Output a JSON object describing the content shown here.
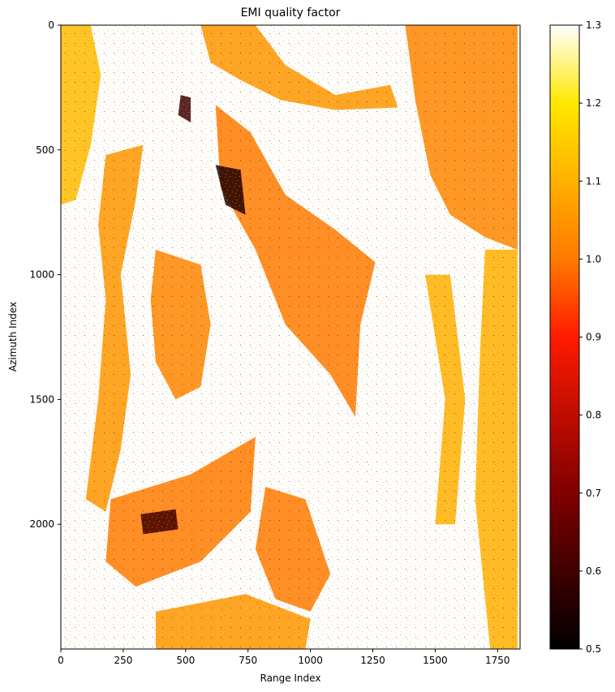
{
  "chart_data": {
    "type": "heatmap",
    "title": "EMI quality factor",
    "xlabel": "Range Index",
    "ylabel": "Azimuth Index",
    "xlim": [
      0,
      1840
    ],
    "ylim": [
      2500,
      0
    ],
    "x_ticks": [
      0,
      250,
      500,
      750,
      1000,
      1250,
      1500,
      1750
    ],
    "y_ticks": [
      0,
      500,
      1000,
      1500,
      2000
    ],
    "x_tick_labels": [
      "0",
      "250",
      "500",
      "750",
      "1000",
      "1250",
      "1500",
      "1750"
    ],
    "y_tick_labels": [
      "0",
      "500",
      "1000",
      "1500",
      "2000"
    ],
    "colormap": "afmhot",
    "colorbar": {
      "range": [
        0.5,
        1.3
      ],
      "ticks": [
        0.5,
        0.6,
        0.7,
        0.8,
        0.9,
        1.0,
        1.1,
        1.2,
        1.3
      ],
      "tick_labels": [
        "0.5",
        "0.6",
        "0.7",
        "0.8",
        "0.9",
        "1.0",
        "1.1",
        "1.2",
        "1.3"
      ]
    },
    "colors": {
      "background": "#ffffff",
      "orange": "#ff7a0a",
      "amber": "#ffa800",
      "yellow": "#ffc400",
      "dark": "#1a0000"
    },
    "regions": [
      {
        "name": "left-strip",
        "value": 1.12,
        "polygon": [
          [
            0,
            0
          ],
          [
            120,
            0
          ],
          [
            160,
            200
          ],
          [
            120,
            480
          ],
          [
            60,
            700
          ],
          [
            0,
            720
          ]
        ]
      },
      {
        "name": "left-diag-strip",
        "value": 1.05,
        "polygon": [
          [
            180,
            520
          ],
          [
            330,
            480
          ],
          [
            300,
            700
          ],
          [
            240,
            1000
          ],
          [
            280,
            1400
          ],
          [
            240,
            1700
          ],
          [
            180,
            1950
          ],
          [
            100,
            1900
          ],
          [
            150,
            1500
          ],
          [
            180,
            1100
          ],
          [
            150,
            800
          ]
        ]
      },
      {
        "name": "center-left-block",
        "value": 1.02,
        "polygon": [
          [
            380,
            900
          ],
          [
            560,
            960
          ],
          [
            600,
            1200
          ],
          [
            560,
            1450
          ],
          [
            460,
            1500
          ],
          [
            380,
            1350
          ],
          [
            360,
            1100
          ]
        ]
      },
      {
        "name": "lower-left-block",
        "value": 1.0,
        "polygon": [
          [
            200,
            1900
          ],
          [
            520,
            1800
          ],
          [
            780,
            1650
          ],
          [
            760,
            1950
          ],
          [
            560,
            2150
          ],
          [
            300,
            2250
          ],
          [
            180,
            2150
          ]
        ]
      },
      {
        "name": "lower-mid-block",
        "value": 1.0,
        "polygon": [
          [
            820,
            1850
          ],
          [
            980,
            1900
          ],
          [
            1080,
            2200
          ],
          [
            1000,
            2350
          ],
          [
            860,
            2300
          ],
          [
            780,
            2100
          ]
        ]
      },
      {
        "name": "center-diag-band",
        "value": 1.0,
        "polygon": [
          [
            620,
            320
          ],
          [
            760,
            430
          ],
          [
            900,
            680
          ],
          [
            1100,
            820
          ],
          [
            1260,
            950
          ],
          [
            1200,
            1200
          ],
          [
            1180,
            1570
          ],
          [
            1080,
            1400
          ],
          [
            900,
            1200
          ],
          [
            780,
            900
          ],
          [
            640,
            650
          ]
        ]
      },
      {
        "name": "top-center-ridge",
        "value": 1.05,
        "polygon": [
          [
            560,
            0
          ],
          [
            780,
            0
          ],
          [
            900,
            160
          ],
          [
            1100,
            280
          ],
          [
            1320,
            240
          ],
          [
            1350,
            330
          ],
          [
            1100,
            340
          ],
          [
            880,
            300
          ],
          [
            720,
            220
          ],
          [
            600,
            150
          ]
        ]
      },
      {
        "name": "top-right-block",
        "value": 1.02,
        "polygon": [
          [
            1380,
            0
          ],
          [
            1830,
            0
          ],
          [
            1830,
            900
          ],
          [
            1700,
            850
          ],
          [
            1560,
            760
          ],
          [
            1480,
            600
          ],
          [
            1420,
            300
          ]
        ]
      },
      {
        "name": "right-edge-strip",
        "value": 1.1,
        "polygon": [
          [
            1700,
            900
          ],
          [
            1830,
            900
          ],
          [
            1830,
            2500
          ],
          [
            1720,
            2500
          ],
          [
            1660,
            1900
          ],
          [
            1680,
            1300
          ]
        ]
      },
      {
        "name": "bottom-left-strip",
        "value": 1.05,
        "polygon": [
          [
            380,
            2350
          ],
          [
            740,
            2280
          ],
          [
            1000,
            2380
          ],
          [
            980,
            2500
          ],
          [
            380,
            2500
          ]
        ]
      },
      {
        "name": "mid-right-strip",
        "value": 1.1,
        "polygon": [
          [
            1460,
            1000
          ],
          [
            1560,
            1000
          ],
          [
            1620,
            1500
          ],
          [
            1580,
            2000
          ],
          [
            1500,
            2000
          ],
          [
            1540,
            1500
          ]
        ]
      },
      {
        "name": "dark-patch-1",
        "value": 0.55,
        "polygon": [
          [
            620,
            560
          ],
          [
            720,
            580
          ],
          [
            740,
            760
          ],
          [
            660,
            720
          ]
        ]
      },
      {
        "name": "dark-patch-2",
        "value": 0.6,
        "polygon": [
          [
            480,
            280
          ],
          [
            520,
            290
          ],
          [
            520,
            390
          ],
          [
            470,
            360
          ]
        ]
      },
      {
        "name": "dark-patch-3",
        "value": 0.6,
        "polygon": [
          [
            320,
            1960
          ],
          [
            460,
            1940
          ],
          [
            470,
            2020
          ],
          [
            330,
            2040
          ]
        ]
      }
    ]
  }
}
